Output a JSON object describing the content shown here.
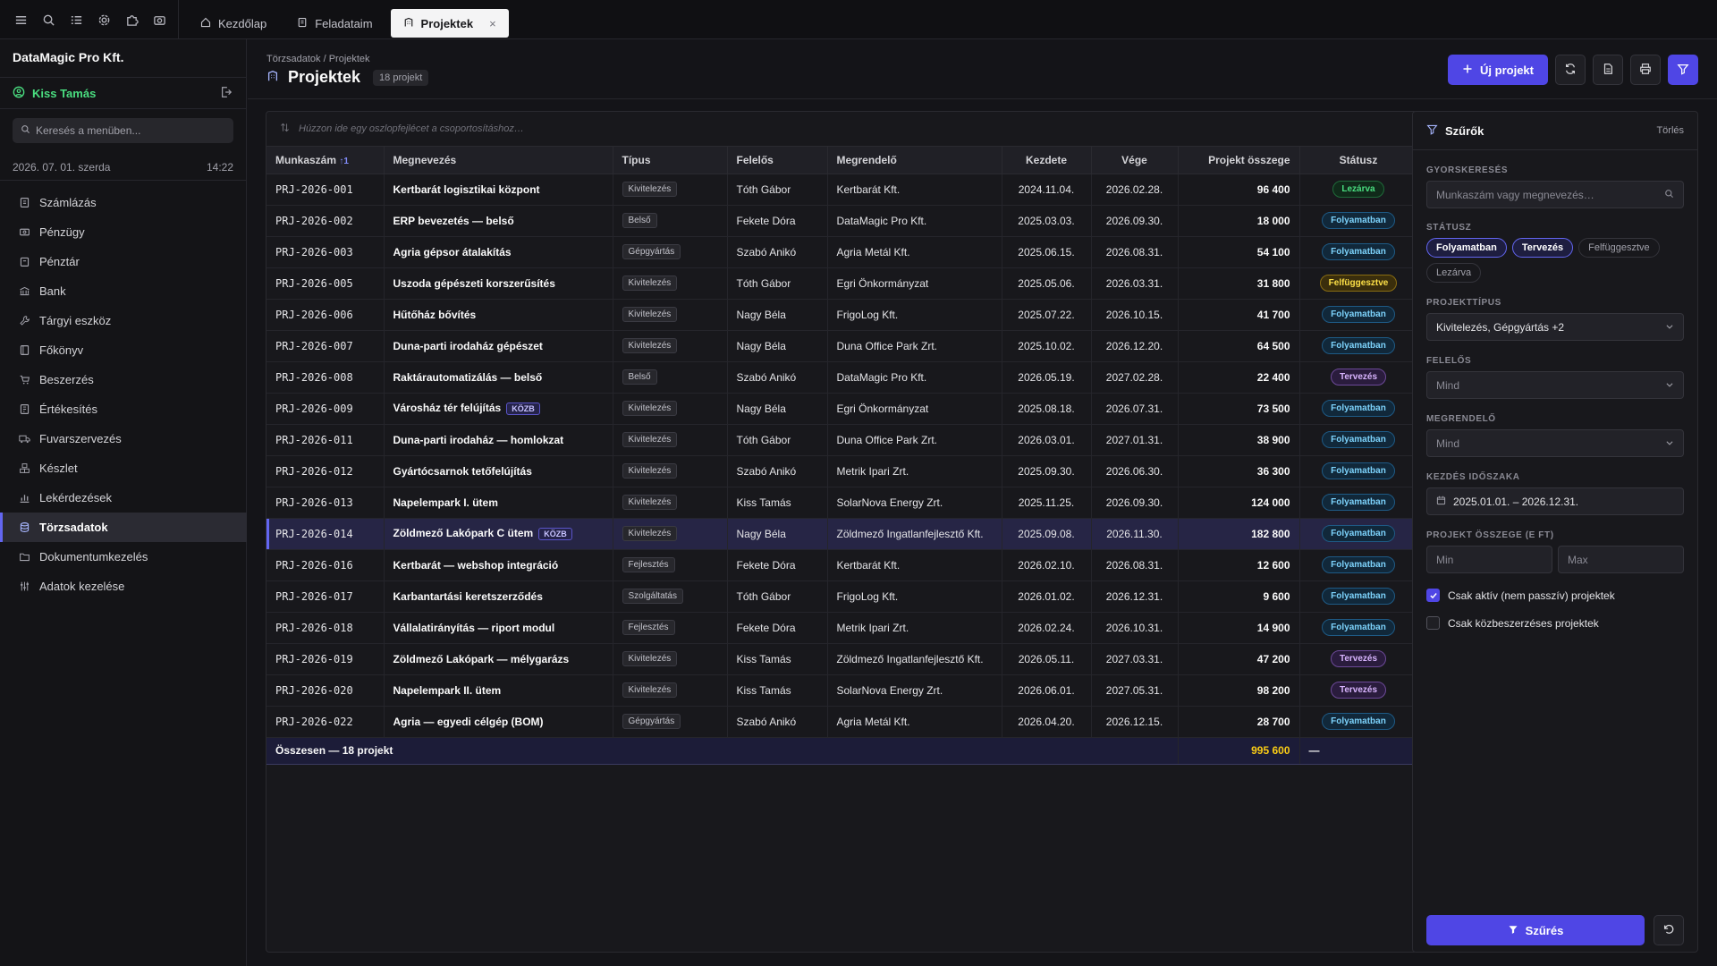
{
  "topbar": {
    "icons": [
      "menu-icon",
      "search-icon",
      "checklist-icon",
      "gear-icon",
      "puzzle-icon",
      "camera-icon"
    ],
    "tabs": [
      {
        "label": "Kezdőlap",
        "icon": "home-icon",
        "active": false
      },
      {
        "label": "Feladataim",
        "icon": "clipboard-icon",
        "active": false
      },
      {
        "label": "Projektek",
        "icon": "building-icon",
        "active": true,
        "close": "×"
      }
    ]
  },
  "sidebar": {
    "company": "DataMagic Pro Kft.",
    "user": "Kiss Tamás",
    "search_placeholder": "Keresés a menüben...",
    "date": "2026. 07. 01. szerda",
    "time": "14:22",
    "items": [
      {
        "label": "Számlázás",
        "icon": "invoice-icon"
      },
      {
        "label": "Pénzügy",
        "icon": "money-icon"
      },
      {
        "label": "Pénztár",
        "icon": "cashbox-icon"
      },
      {
        "label": "Bank",
        "icon": "bank-icon"
      },
      {
        "label": "Tárgyi eszköz",
        "icon": "wrench-icon"
      },
      {
        "label": "Főkönyv",
        "icon": "ledger-icon"
      },
      {
        "label": "Beszerzés",
        "icon": "cart-icon"
      },
      {
        "label": "Értékesítés",
        "icon": "sales-icon"
      },
      {
        "label": "Fuvarszervezés",
        "icon": "truck-icon"
      },
      {
        "label": "Készlet",
        "icon": "boxes-icon"
      },
      {
        "label": "Lekérdezések",
        "icon": "chart-icon"
      },
      {
        "label": "Törzsadatok",
        "icon": "database-icon",
        "active": true
      },
      {
        "label": "Dokumentumkezelés",
        "icon": "folder-icon"
      },
      {
        "label": "Adatok kezelése",
        "icon": "sliders-icon"
      }
    ]
  },
  "header": {
    "breadcrumb": "Törzsadatok / Projektek",
    "title": "Projektek",
    "count": "18 projekt",
    "new_button": "Új projekt"
  },
  "grid": {
    "group_hint": "Húzzon ide egy oszlopfejlécet a csoportosításhoz…",
    "columns": [
      "Munkaszám",
      "Megnevezés",
      "Típus",
      "Felelős",
      "Megrendelő",
      "Kezdete",
      "Vége",
      "Projekt összege",
      "Státusz"
    ],
    "sort_indicator": "↑1",
    "rows": [
      {
        "id": "PRJ-2026-001",
        "name": "Kertbarát logisztikai központ",
        "kozb": "",
        "type": "Kivitelezés",
        "owner": "Tóth Gábor",
        "client": "Kertbarát Kft.",
        "start": "2024.11.04.",
        "end": "2026.02.28.",
        "amount": "96 400",
        "status": "Lezárva",
        "st": "lezarva"
      },
      {
        "id": "PRJ-2026-002",
        "name": "ERP bevezetés — belső",
        "kozb": "",
        "type": "Belső",
        "owner": "Fekete Dóra",
        "client": "DataMagic Pro Kft.",
        "start": "2025.03.03.",
        "end": "2026.09.30.",
        "amount": "18 000",
        "status": "Folyamatban",
        "st": "folyamatban"
      },
      {
        "id": "PRJ-2026-003",
        "name": "Agria gépsor átalakítás",
        "kozb": "",
        "type": "Gépgyártás",
        "owner": "Szabó Anikó",
        "client": "Agria Metál Kft.",
        "start": "2025.06.15.",
        "end": "2026.08.31.",
        "amount": "54 100",
        "status": "Folyamatban",
        "st": "folyamatban"
      },
      {
        "id": "PRJ-2026-005",
        "name": "Uszoda gépészeti korszerűsítés",
        "kozb": "",
        "type": "Kivitelezés",
        "owner": "Tóth Gábor",
        "client": "Egri Önkormányzat",
        "start": "2025.05.06.",
        "end": "2026.03.31.",
        "amount": "31 800",
        "status": "Felfüggesztve",
        "st": "felfuggesztve"
      },
      {
        "id": "PRJ-2026-006",
        "name": "Hűtőház bővítés",
        "kozb": "",
        "type": "Kivitelezés",
        "owner": "Nagy Béla",
        "client": "FrigoLog Kft.",
        "start": "2025.07.22.",
        "end": "2026.10.15.",
        "amount": "41 700",
        "status": "Folyamatban",
        "st": "folyamatban"
      },
      {
        "id": "PRJ-2026-007",
        "name": "Duna-parti irodaház gépészet",
        "kozb": "",
        "type": "Kivitelezés",
        "owner": "Nagy Béla",
        "client": "Duna Office Park Zrt.",
        "start": "2025.10.02.",
        "end": "2026.12.20.",
        "amount": "64 500",
        "status": "Folyamatban",
        "st": "folyamatban"
      },
      {
        "id": "PRJ-2026-008",
        "name": "Raktárautomatizálás — belső",
        "kozb": "",
        "type": "Belső",
        "owner": "Szabó Anikó",
        "client": "DataMagic Pro Kft.",
        "start": "2026.05.19.",
        "end": "2027.02.28.",
        "amount": "22 400",
        "status": "Tervezés",
        "st": "tervezes"
      },
      {
        "id": "PRJ-2026-009",
        "name": "Városház tér felújítás",
        "kozb": "KÖZB",
        "type": "Kivitelezés",
        "owner": "Nagy Béla",
        "client": "Egri Önkormányzat",
        "start": "2025.08.18.",
        "end": "2026.07.31.",
        "amount": "73 500",
        "status": "Folyamatban",
        "st": "folyamatban"
      },
      {
        "id": "PRJ-2026-011",
        "name": "Duna-parti irodaház — homlokzat",
        "kozb": "",
        "type": "Kivitelezés",
        "owner": "Tóth Gábor",
        "client": "Duna Office Park Zrt.",
        "start": "2026.03.01.",
        "end": "2027.01.31.",
        "amount": "38 900",
        "status": "Folyamatban",
        "st": "folyamatban"
      },
      {
        "id": "PRJ-2026-012",
        "name": "Gyártócsarnok tetőfelújítás",
        "kozb": "",
        "type": "Kivitelezés",
        "owner": "Szabó Anikó",
        "client": "Metrik Ipari Zrt.",
        "start": "2025.09.30.",
        "end": "2026.06.30.",
        "amount": "36 300",
        "status": "Folyamatban",
        "st": "folyamatban"
      },
      {
        "id": "PRJ-2026-013",
        "name": "Napelempark I. ütem",
        "kozb": "",
        "type": "Kivitelezés",
        "owner": "Kiss Tamás",
        "client": "SolarNova Energy Zrt.",
        "start": "2025.11.25.",
        "end": "2026.09.30.",
        "amount": "124 000",
        "status": "Folyamatban",
        "st": "folyamatban"
      },
      {
        "id": "PRJ-2026-014",
        "name": "Zöldmező Lakópark C ütem",
        "kozb": "KÖZB",
        "type": "Kivitelezés",
        "owner": "Nagy Béla",
        "client": "Zöldmező Ingatlanfejlesztő Kft.",
        "start": "2025.09.08.",
        "end": "2026.11.30.",
        "amount": "182 800",
        "status": "Folyamatban",
        "st": "folyamatban",
        "selected": true
      },
      {
        "id": "PRJ-2026-016",
        "name": "Kertbarát — webshop integráció",
        "kozb": "",
        "type": "Fejlesztés",
        "owner": "Fekete Dóra",
        "client": "Kertbarát Kft.",
        "start": "2026.02.10.",
        "end": "2026.08.31.",
        "amount": "12 600",
        "status": "Folyamatban",
        "st": "folyamatban"
      },
      {
        "id": "PRJ-2026-017",
        "name": "Karbantartási keretszerződés",
        "kozb": "",
        "type": "Szolgáltatás",
        "owner": "Tóth Gábor",
        "client": "FrigoLog Kft.",
        "start": "2026.01.02.",
        "end": "2026.12.31.",
        "amount": "9 600",
        "status": "Folyamatban",
        "st": "folyamatban"
      },
      {
        "id": "PRJ-2026-018",
        "name": "Vállalatirányítás — riport modul",
        "kozb": "",
        "type": "Fejlesztés",
        "owner": "Fekete Dóra",
        "client": "Metrik Ipari Zrt.",
        "start": "2026.02.24.",
        "end": "2026.10.31.",
        "amount": "14 900",
        "status": "Folyamatban",
        "st": "folyamatban"
      },
      {
        "id": "PRJ-2026-019",
        "name": "Zöldmező Lakópark — mélygarázs",
        "kozb": "",
        "type": "Kivitelezés",
        "owner": "Kiss Tamás",
        "client": "Zöldmező Ingatlanfejlesztő Kft.",
        "start": "2026.05.11.",
        "end": "2027.03.31.",
        "amount": "47 200",
        "status": "Tervezés",
        "st": "tervezes"
      },
      {
        "id": "PRJ-2026-020",
        "name": "Napelempark II. ütem",
        "kozb": "",
        "type": "Kivitelezés",
        "owner": "Kiss Tamás",
        "client": "SolarNova Energy Zrt.",
        "start": "2026.06.01.",
        "end": "2027.05.31.",
        "amount": "98 200",
        "status": "Tervezés",
        "st": "tervezes"
      },
      {
        "id": "PRJ-2026-022",
        "name": "Agria — egyedi célgép (BOM)",
        "kozb": "",
        "type": "Gépgyártás",
        "owner": "Szabó Anikó",
        "client": "Agria Metál Kft.",
        "start": "2026.04.20.",
        "end": "2026.12.15.",
        "amount": "28 700",
        "status": "Folyamatban",
        "st": "folyamatban"
      }
    ],
    "summary": {
      "label": "Összesen — 18 projekt",
      "amount": "995 600",
      "status": "—"
    }
  },
  "filters": {
    "title": "Szűrők",
    "clear": "Törlés",
    "quick_label": "GYORSKERESÉS",
    "quick_placeholder": "Munkaszám vagy megnevezés…",
    "status_label": "STÁTUSZ",
    "status_chips": [
      {
        "label": "Folyamatban",
        "on": true
      },
      {
        "label": "Tervezés",
        "on": true
      },
      {
        "label": "Felfüggesztve",
        "on": false
      },
      {
        "label": "Lezárva",
        "on": false
      }
    ],
    "type_label": "PROJEKTTÍPUS",
    "type_value": "Kivitelezés, Gépgyártás +2",
    "owner_label": "FELELŐS",
    "owner_value": "Mind",
    "client_label": "MEGRENDELŐ",
    "client_value": "Mind",
    "period_label": "KEZDÉS IDŐSZAKA",
    "period_value": "2025.01.01. – 2026.12.31.",
    "amount_label": "PROJEKT ÖSSZEGE (E FT)",
    "min_placeholder": "Min",
    "max_placeholder": "Max",
    "check_active": "Csak aktív (nem passzív) projektek",
    "check_active_on": true,
    "check_public": "Csak közbeszerzéses projektek",
    "check_public_on": false,
    "apply": "Szűrés"
  },
  "colors": {
    "accent": "#4f46e5",
    "user": "#4ade80",
    "sum_amount": "#facc15"
  }
}
